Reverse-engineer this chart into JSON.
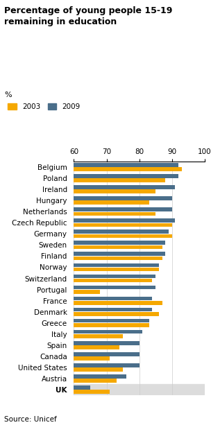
{
  "title": "Percentage of young people 15-19\nremaining in education",
  "ylabel_pct": "%",
  "source": "Source: Unicef",
  "xlim": [
    60,
    100
  ],
  "xticks": [
    60,
    70,
    80,
    90,
    100
  ],
  "legend_2003": "2003",
  "legend_2009": "2009",
  "color_2003": "#F5A800",
  "color_2009": "#4A6E8A",
  "color_uk_bg": "#DCDCDC",
  "countries": [
    "Belgium",
    "Poland",
    "Ireland",
    "Hungary",
    "Netherlands",
    "Czech Republic",
    "Germany",
    "Sweden",
    "Finland",
    "Norway",
    "Switzerland",
    "Portugal",
    "France",
    "Denmark",
    "Greece",
    "Italy",
    "Spain",
    "Canada",
    "United States",
    "Austria",
    "UK"
  ],
  "values_2003": [
    93,
    88,
    85,
    83,
    85,
    90,
    90,
    87,
    87,
    86,
    84,
    68,
    87,
    86,
    83,
    75,
    74,
    71,
    75,
    73,
    71
  ],
  "values_2009": [
    92,
    92,
    91,
    90,
    90,
    91,
    89,
    88,
    88,
    86,
    85,
    85,
    84,
    84,
    83,
    81,
    80,
    80,
    80,
    76,
    65
  ]
}
